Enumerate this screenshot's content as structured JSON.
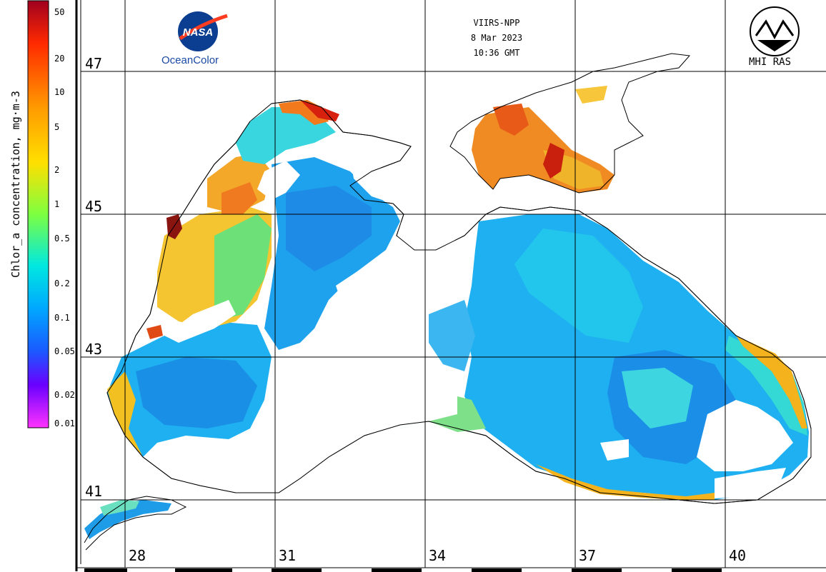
{
  "header": {
    "sensor": "VIIRS-NPP",
    "date": "8 Mar 2023",
    "time": "10:36 GMT"
  },
  "logos": {
    "nasa_mark": "NASA",
    "nasa_caption": "OceanColor",
    "mhi_caption": "MHI RAS"
  },
  "colorbar": {
    "title": "Chlor_a concentration, mg·m-3",
    "ticks": [
      "50",
      "20",
      "10",
      "5",
      "2",
      "1",
      "0.5",
      "0.2",
      "0.1",
      "0.05",
      "0.02",
      "0.01"
    ],
    "colors": [
      "#a0001e",
      "#ff2a00",
      "#ff8a00",
      "#ffd000",
      "#c6ff00",
      "#4dff5a",
      "#00e8e0",
      "#00a8ff",
      "#1a6aff",
      "#2020ff",
      "#7a00ff",
      "#ff33ff"
    ]
  },
  "grid": {
    "latitudes": [
      "47",
      "45",
      "43",
      "41"
    ],
    "longitudes": [
      "28",
      "31",
      "34",
      "37",
      "40"
    ]
  },
  "colors": {
    "land": "#ffffff",
    "coast": "#000000",
    "water_low": "#1ea8f0",
    "water_mid": "#22c8e8",
    "water_high": "#f5a623",
    "water_very_high": "#e8351c",
    "cloud": "#ffffff"
  }
}
